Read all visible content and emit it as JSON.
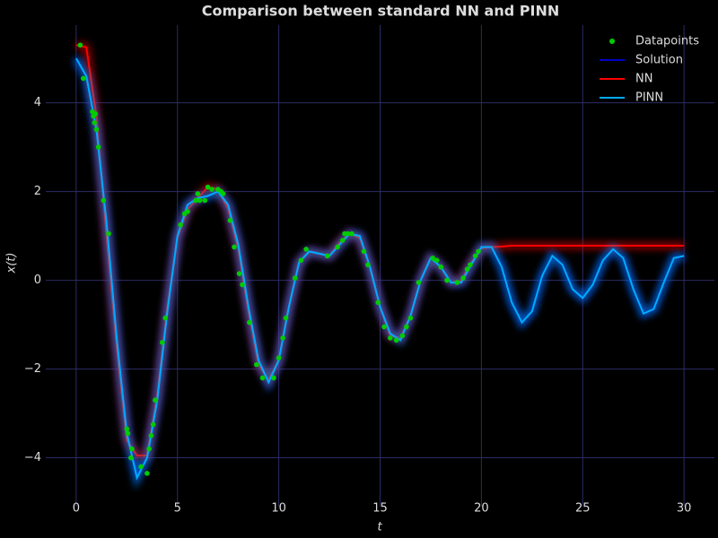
{
  "chart_data": {
    "type": "line",
    "title": "Comparison between standard NN and PINN",
    "x_label": "t",
    "y_label": "x(t)",
    "xlim": [
      -1.5,
      31.5
    ],
    "ylim": [
      -5.1,
      5.75
    ],
    "xticks": [
      0,
      5,
      10,
      15,
      20,
      25,
      30
    ],
    "yticks": [
      {
        "value": -4,
        "label": "−4"
      },
      {
        "value": -2,
        "label": "−2"
      },
      0,
      2,
      4
    ],
    "grid": true,
    "legend": "upper right",
    "x": [
      0,
      0.5,
      1,
      1.5,
      2,
      2.5,
      3,
      3.5,
      4,
      4.5,
      5,
      5.5,
      6,
      6.5,
      7,
      7.5,
      8,
      8.5,
      9,
      9.5,
      10,
      10.5,
      11,
      11.5,
      12,
      12.5,
      13,
      13.5,
      14,
      14.5,
      15,
      15.5,
      16,
      16.5,
      17,
      17.5,
      18,
      18.5,
      19,
      19.5,
      20,
      20.5,
      21,
      21.5,
      22,
      22.5,
      23,
      23.5,
      24,
      24.5,
      25,
      25.5,
      26,
      26.5,
      27,
      27.5,
      28,
      28.5,
      29,
      29.5,
      30
    ],
    "series": [
      {
        "name": "Datapoints",
        "type": "scatter",
        "color": "#00cc00",
        "x": [
          0.2,
          0.35,
          0.8,
          0.85,
          0.9,
          0.95,
          1.0,
          1.1,
          1.35,
          1.6,
          2.5,
          2.55,
          2.7,
          2.75,
          3.2,
          3.5,
          3.6,
          3.7,
          3.8,
          3.9,
          4.25,
          4.4,
          5.15,
          5.35,
          5.5,
          5.9,
          6.0,
          6.1,
          6.35,
          6.5,
          6.7,
          7.0,
          7.15,
          7.25,
          7.6,
          7.8,
          8.05,
          8.2,
          8.55,
          8.9,
          9.2,
          9.75,
          10.0,
          10.2,
          10.35,
          10.8,
          11.1,
          11.35,
          12.4,
          12.9,
          13.15,
          13.25,
          13.4,
          13.6,
          14.2,
          14.4,
          14.9,
          15.2,
          15.5,
          15.8,
          16.1,
          16.3,
          16.5,
          16.9,
          17.6,
          17.8,
          18.0,
          18.3,
          18.8,
          19.1,
          19.3,
          19.45,
          19.7,
          19.85
        ],
        "values": [
          5.3,
          4.55,
          3.8,
          3.7,
          3.55,
          3.75,
          3.4,
          3.0,
          1.8,
          1.05,
          -3.35,
          -3.45,
          -4.0,
          -3.8,
          -4.2,
          -4.35,
          -3.8,
          -3.5,
          -3.25,
          -2.7,
          -1.4,
          -0.85,
          1.25,
          1.5,
          1.55,
          1.8,
          1.95,
          1.8,
          1.8,
          2.1,
          2.05,
          2.05,
          2.0,
          1.95,
          1.35,
          0.75,
          0.15,
          -0.1,
          -0.95,
          -1.9,
          -2.2,
          -2.2,
          -1.75,
          -1.3,
          -0.85,
          0.05,
          0.45,
          0.7,
          0.55,
          0.75,
          0.9,
          1.05,
          1.05,
          1.05,
          0.65,
          0.35,
          -0.5,
          -1.05,
          -1.3,
          -1.35,
          -1.25,
          -1.05,
          -0.85,
          -0.05,
          0.5,
          0.45,
          0.3,
          0.0,
          -0.05,
          0.05,
          0.25,
          0.35,
          0.55,
          0.65
        ]
      },
      {
        "name": "Solution",
        "color": "#0000cc",
        "values": [
          5.0,
          4.6,
          3.4,
          1.3,
          -1.3,
          -3.4,
          -4.4,
          -4.0,
          -2.7,
          -0.7,
          1.0,
          1.7,
          1.85,
          1.9,
          2.0,
          1.7,
          0.8,
          -0.6,
          -1.8,
          -2.3,
          -1.8,
          -0.6,
          0.4,
          0.65,
          0.6,
          0.55,
          0.8,
          1.05,
          1.0,
          0.3,
          -0.6,
          -1.2,
          -1.3,
          -0.8,
          0.0,
          0.5,
          0.3,
          -0.05,
          -0.05,
          0.35,
          0.75,
          0.75,
          0.3,
          -0.5,
          -0.95,
          -0.7,
          0.1,
          0.55,
          0.35,
          -0.2,
          -0.4,
          -0.1,
          0.45,
          0.7,
          0.5,
          -0.2,
          -0.75,
          -0.65,
          -0.05,
          0.5,
          0.55
        ]
      },
      {
        "name": "NN",
        "color": "#ff0000",
        "values": [
          5.3,
          5.25,
          3.7,
          1.0,
          -1.5,
          -3.6,
          -3.95,
          -3.95,
          -2.6,
          -0.6,
          0.95,
          1.6,
          1.85,
          2.1,
          2.05,
          1.6,
          0.7,
          -0.7,
          -1.9,
          -2.25,
          -1.8,
          -0.6,
          0.4,
          0.65,
          0.6,
          0.55,
          0.85,
          1.05,
          0.95,
          0.3,
          -0.6,
          -1.25,
          -1.3,
          -0.8,
          0.0,
          0.5,
          0.3,
          -0.05,
          0.0,
          0.4,
          0.72,
          0.75,
          0.76,
          0.78,
          0.78,
          0.78,
          0.78,
          0.78,
          0.78,
          0.78,
          0.78,
          0.78,
          0.78,
          0.78,
          0.78,
          0.78,
          0.78,
          0.78,
          0.78,
          0.78,
          0.78
        ]
      },
      {
        "name": "PINN",
        "color": "#00aaff",
        "values": [
          5.0,
          4.6,
          3.4,
          1.3,
          -1.3,
          -3.45,
          -4.45,
          -4.0,
          -2.7,
          -0.7,
          1.0,
          1.7,
          1.85,
          1.9,
          2.0,
          1.7,
          0.8,
          -0.6,
          -1.8,
          -2.3,
          -1.8,
          -0.6,
          0.4,
          0.65,
          0.6,
          0.55,
          0.8,
          1.05,
          1.0,
          0.3,
          -0.6,
          -1.2,
          -1.35,
          -0.8,
          0.0,
          0.5,
          0.3,
          -0.05,
          -0.05,
          0.35,
          0.75,
          0.75,
          0.3,
          -0.5,
          -0.95,
          -0.7,
          0.1,
          0.55,
          0.35,
          -0.2,
          -0.4,
          -0.1,
          0.45,
          0.7,
          0.5,
          -0.2,
          -0.75,
          -0.65,
          -0.05,
          0.5,
          0.55
        ]
      }
    ]
  }
}
